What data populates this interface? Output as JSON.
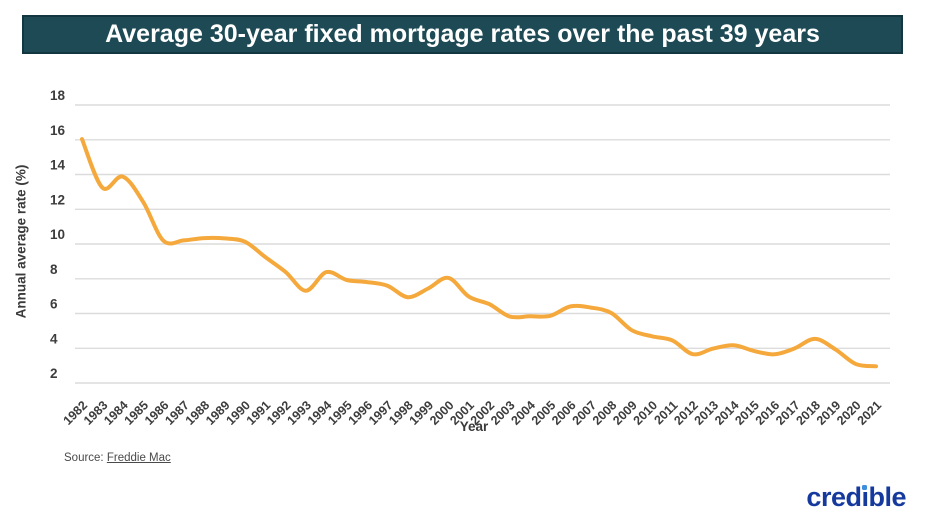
{
  "title": "Average 30-year fixed mortgage rates over the past 39 years",
  "source": {
    "label": "Source:",
    "link_text": "Freddie Mac"
  },
  "logo": {
    "text": "credible"
  },
  "colors": {
    "title_bar_bg": "#1d4a54",
    "title_bar_border": "#123741",
    "line": "#f5a93c",
    "grid": "#dcdcdc",
    "tick_text": "#3d3d3d",
    "logo_blue": "#16399d",
    "logo_dot": "#3e8ede"
  },
  "chart_data": {
    "type": "line",
    "title": "Average 30-year fixed mortgage rates over the past 39 years",
    "xlabel": "Year",
    "ylabel": "Annual average rate (%)",
    "ylim": [
      2,
      18
    ],
    "yticks": [
      2,
      4,
      6,
      8,
      10,
      12,
      14,
      16,
      18
    ],
    "grid": "horizontal",
    "legend": "none",
    "line_color": "#f5a93c",
    "smoothed": true,
    "categories": [
      "1982",
      "1983",
      "1984",
      "1985",
      "1986",
      "1987",
      "1988",
      "1989",
      "1990",
      "1991",
      "1992",
      "1993",
      "1994",
      "1995",
      "1996",
      "1997",
      "1998",
      "1999",
      "2000",
      "2001",
      "2002",
      "2003",
      "2004",
      "2005",
      "2006",
      "2007",
      "2008",
      "2009",
      "2010",
      "2011",
      "2012",
      "2013",
      "2014",
      "2015",
      "2016",
      "2017",
      "2018",
      "2019",
      "2020",
      "2021"
    ],
    "values": [
      16.04,
      13.24,
      13.88,
      12.43,
      10.19,
      10.21,
      10.34,
      10.32,
      10.13,
      9.25,
      8.39,
      7.31,
      8.38,
      7.93,
      7.81,
      7.6,
      6.94,
      7.44,
      8.05,
      6.97,
      6.54,
      5.83,
      5.84,
      5.87,
      6.41,
      6.34,
      6.03,
      5.04,
      4.69,
      4.45,
      3.66,
      3.98,
      4.17,
      3.85,
      3.65,
      3.99,
      4.54,
      3.94,
      3.1,
      2.96
    ]
  }
}
